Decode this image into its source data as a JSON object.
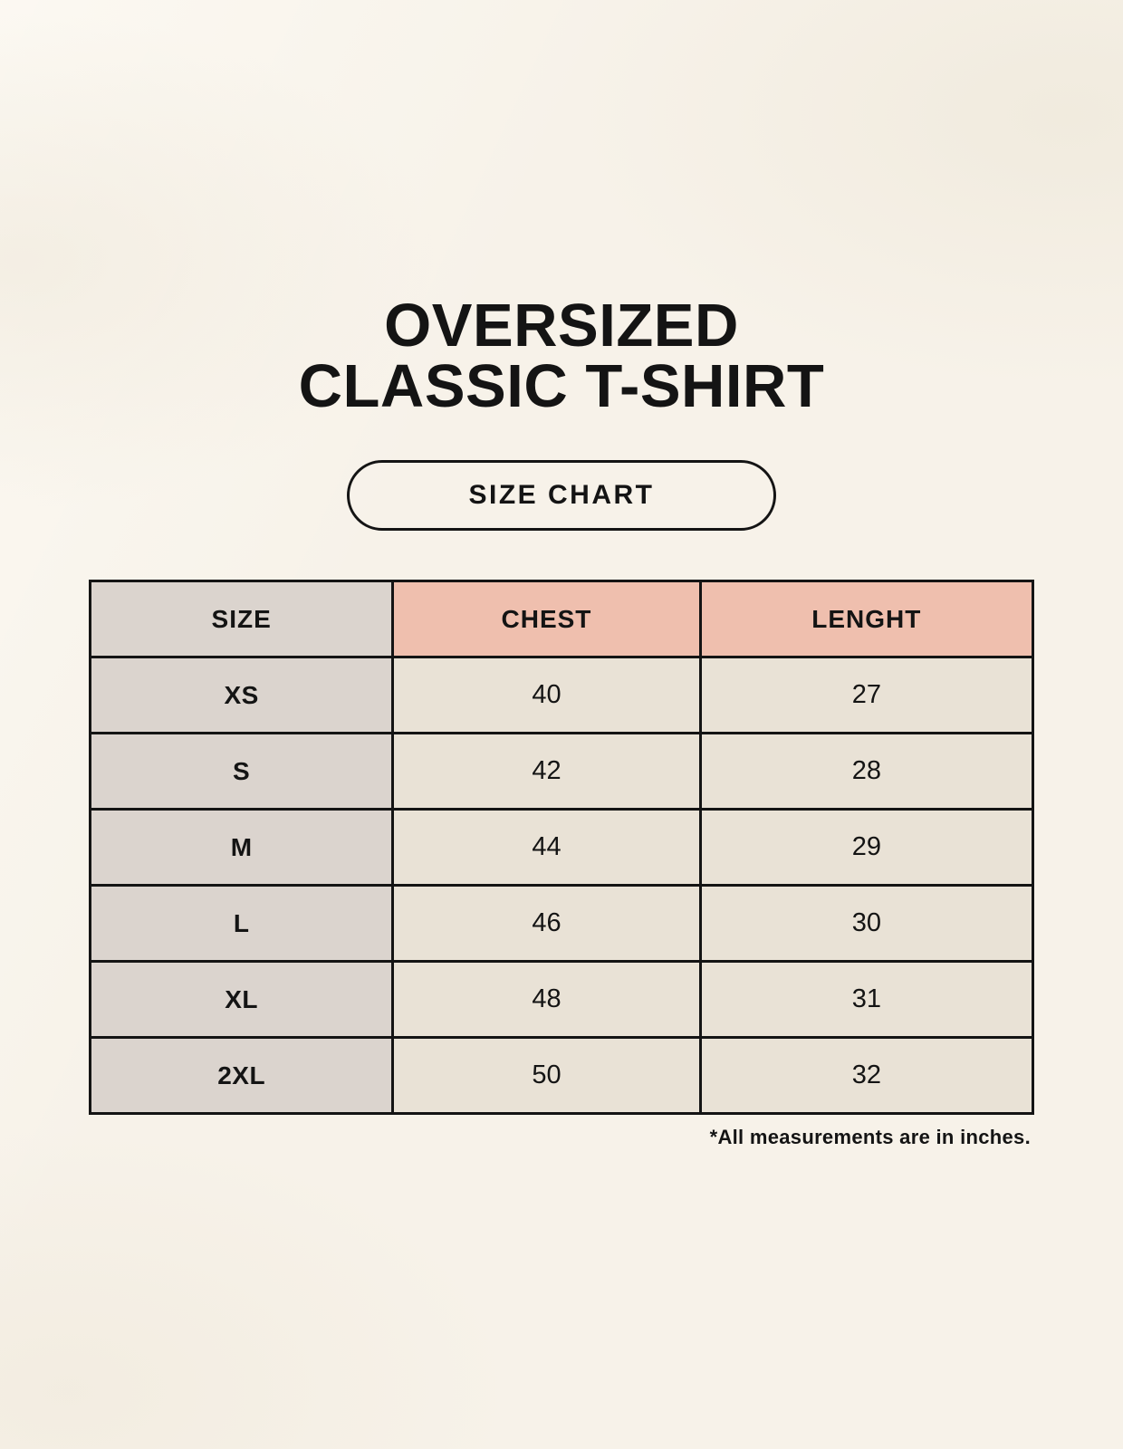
{
  "header": {
    "title_line1": "OVERSIZED",
    "title_line2": "CLASSIC T-SHIRT",
    "size_chart_button": "SIZE CHART"
  },
  "footnote": "*All measurements are in inches.",
  "colors": {
    "background": "#f7f2e9",
    "label_cell_bg": "#dbd4ce",
    "measure_header_bg": "#efbfae",
    "value_cell_bg": "#e9e2d6",
    "border": "#141414",
    "text": "#141414"
  },
  "chart_data": {
    "type": "table",
    "title": "OVERSIZED CLASSIC T-SHIRT",
    "subtitle": "SIZE CHART",
    "columns": [
      "SIZE",
      "CHEST",
      "LENGHT"
    ],
    "rows": [
      [
        "XS",
        "40",
        "27"
      ],
      [
        "S",
        "42",
        "28"
      ],
      [
        "M",
        "44",
        "29"
      ],
      [
        "L",
        "46",
        "30"
      ],
      [
        "XL",
        "48",
        "31"
      ],
      [
        "2XL",
        "50",
        "32"
      ]
    ],
    "units_note": "*All measurements are in inches.",
    "layout": "header row highlighted; SIZE column gray, CHEST/LENGHT headers salmon, value cells cream; all borders black"
  }
}
